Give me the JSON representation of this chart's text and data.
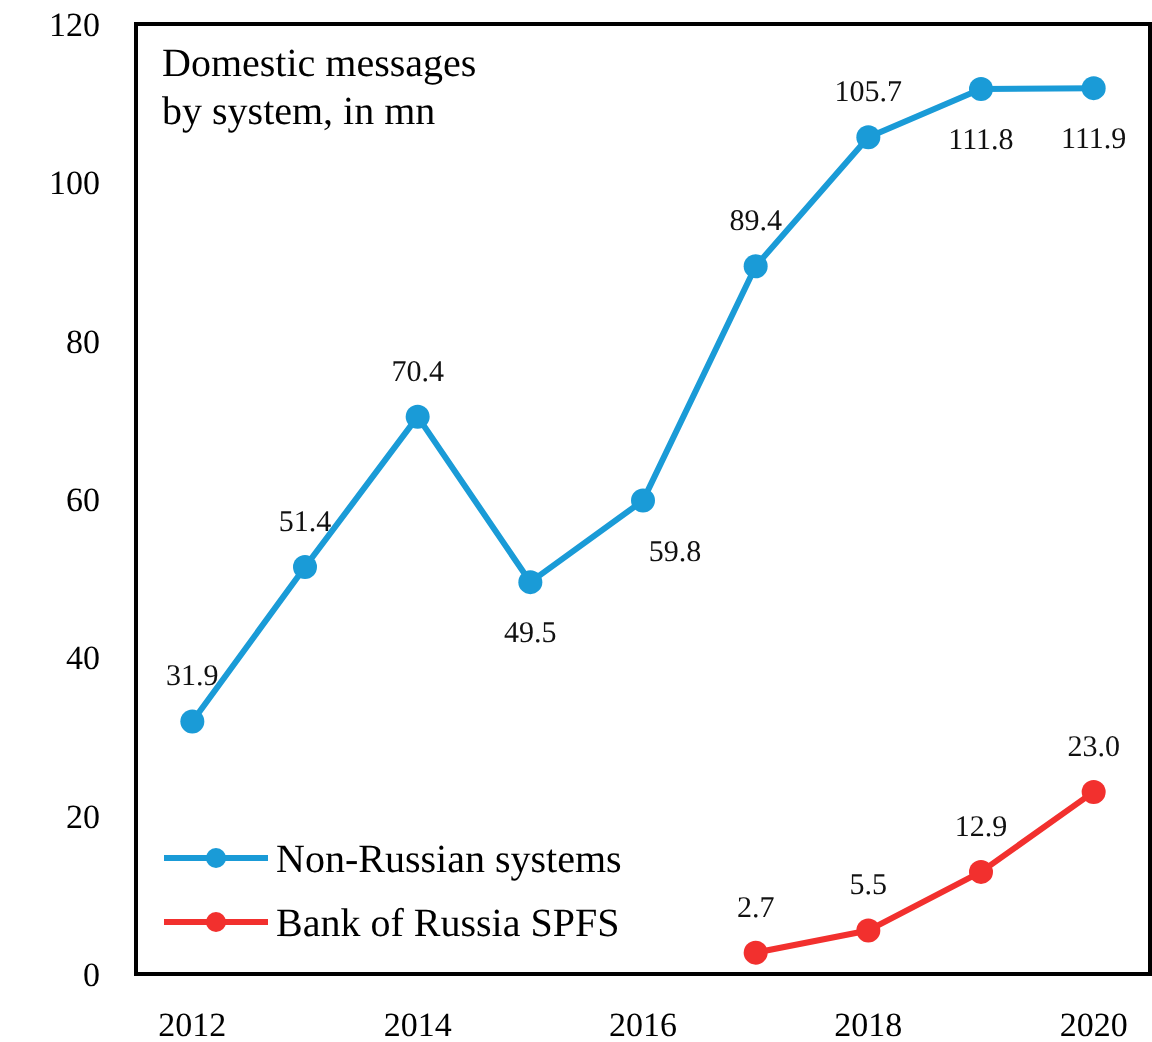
{
  "chart_data": {
    "type": "line",
    "title": "Domestic messages\nby system, in mn",
    "x": [
      2012,
      2013,
      2014,
      2015,
      2016,
      2017,
      2018,
      2019,
      2020
    ],
    "series": [
      {
        "name": "Non-Russian systems",
        "color": "#1a9bd7",
        "values": [
          31.9,
          51.4,
          70.4,
          49.5,
          59.8,
          89.4,
          105.7,
          111.8,
          111.9
        ]
      },
      {
        "name": "Bank of Russia SPFS",
        "color": "#f2302e",
        "values": [
          null,
          null,
          null,
          null,
          null,
          2.7,
          5.5,
          12.9,
          23.0
        ],
        "value_labels": [
          null,
          null,
          null,
          null,
          null,
          "2.7",
          "5.5",
          "12.9",
          "23.0"
        ]
      }
    ],
    "xlim": [
      2011.5,
      2020.5
    ],
    "xticks": [
      2012,
      2014,
      2016,
      2018,
      2020
    ],
    "ylim": [
      0,
      120
    ],
    "yticks": [
      0,
      20,
      40,
      60,
      80,
      100,
      120
    ],
    "data_labels": true,
    "legend": "bottom left",
    "marker": "circle",
    "line_style": "solid",
    "grid": false
  }
}
